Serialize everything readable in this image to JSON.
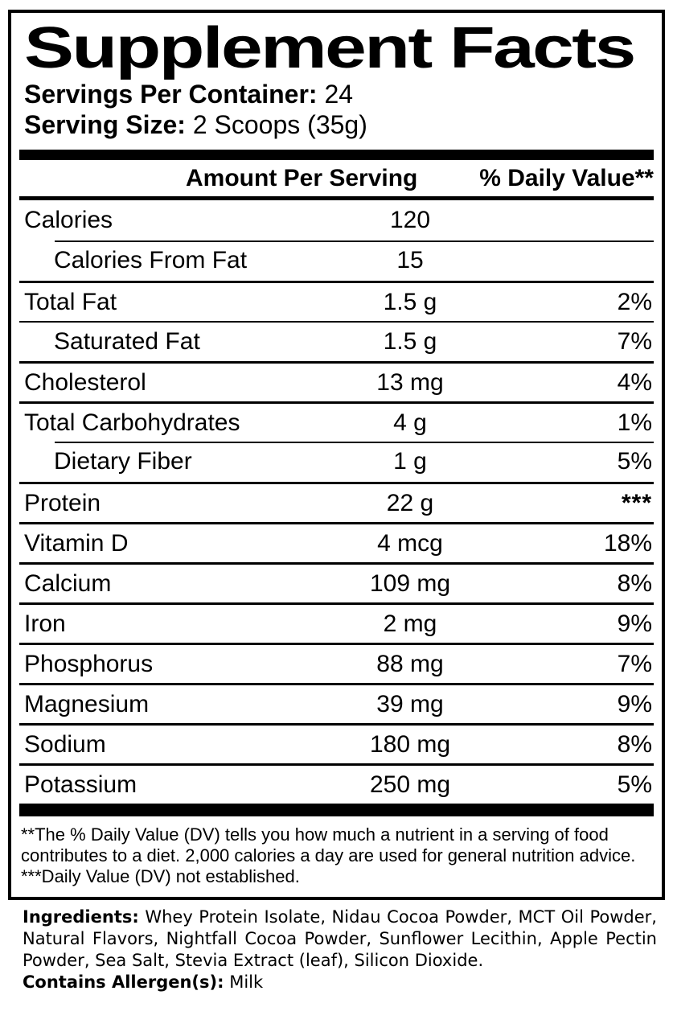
{
  "colors": {
    "text": "#000000",
    "background": "#ffffff"
  },
  "panel": {
    "title": "Supplement Facts",
    "servings_per_container": {
      "label": "Servings Per Container:",
      "value": "24"
    },
    "serving_size": {
      "label": "Serving Size:",
      "value": "2 Scoops (35g)"
    },
    "columns": {
      "amount": "Amount Per Serving",
      "daily_value": "% Daily Value**"
    },
    "rows": [
      {
        "name": "Calories",
        "amount": "120",
        "dv": "",
        "indent": false,
        "rule": "none"
      },
      {
        "name": "Calories From Fat",
        "amount": "15",
        "dv": "",
        "indent": true,
        "rule": "indent"
      },
      {
        "name": "Total Fat",
        "amount": "1.5 g",
        "dv": "2%",
        "indent": false,
        "rule": "thick"
      },
      {
        "name": "Saturated Fat",
        "amount": "1.5 g",
        "dv": "7%",
        "indent": true,
        "rule": "thin"
      },
      {
        "name": "Cholesterol",
        "amount": "13 mg",
        "dv": "4%",
        "indent": false,
        "rule": "thick"
      },
      {
        "name": "Total Carbohydrates",
        "amount": "4 g",
        "dv": "1%",
        "indent": false,
        "rule": "thick"
      },
      {
        "name": "Dietary Fiber",
        "amount": "1 g",
        "dv": "5%",
        "indent": true,
        "rule": "indent"
      },
      {
        "name": "Protein",
        "amount": "22 g",
        "dv": "***",
        "indent": false,
        "rule": "thick"
      },
      {
        "name": "Vitamin D",
        "amount": "4 mcg",
        "dv": "18%",
        "indent": false,
        "rule": "thick"
      },
      {
        "name": "Calcium",
        "amount": "109 mg",
        "dv": "8%",
        "indent": false,
        "rule": "thick"
      },
      {
        "name": "Iron",
        "amount": "2 mg",
        "dv": "9%",
        "indent": false,
        "rule": "thick"
      },
      {
        "name": "Phosphorus",
        "amount": "88 mg",
        "dv": "7%",
        "indent": false,
        "rule": "thick"
      },
      {
        "name": "Magnesium",
        "amount": "39 mg",
        "dv": "9%",
        "indent": false,
        "rule": "thick"
      },
      {
        "name": "Sodium",
        "amount": "180 mg",
        "dv": "8%",
        "indent": false,
        "rule": "thick"
      },
      {
        "name": "Potassium",
        "amount": "250 mg",
        "dv": "5%",
        "indent": false,
        "rule": "thick"
      }
    ],
    "footnotes": {
      "daily_value": "**The % Daily Value (DV) tells you how much a nutrient in a serving of food contributes to a diet. 2,000 calories a day are used for general nutrition advice.",
      "not_established": "***Daily Value (DV) not established."
    }
  },
  "ingredients": {
    "label": "Ingredients:",
    "text": "Whey Protein Isolate, Nidau Cocoa Powder, MCT Oil Powder, Natural Flavors, Nightfall Cocoa Powder, Sunflower Lecithin, Apple Pectin Powder, Sea Salt, Stevia Extract (leaf), Silicon Dioxide."
  },
  "allergens": {
    "label": "Contains Allergen(s):",
    "value": "Milk"
  }
}
